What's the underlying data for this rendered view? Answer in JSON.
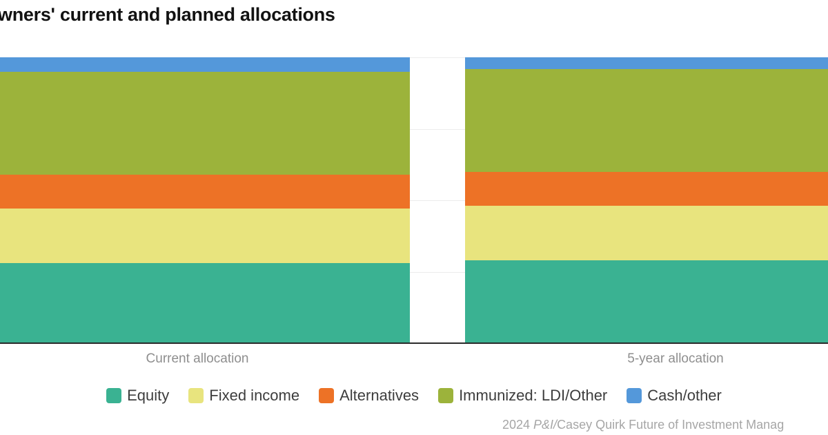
{
  "title": "wners' current and planned allocations",
  "chart_data": {
    "type": "bar",
    "stacked": true,
    "unit": "percent",
    "title": "wners' current and planned allocations",
    "categories": [
      "Current allocation",
      "5-year allocation"
    ],
    "series": [
      {
        "name": "Equity",
        "color": "#3ab292",
        "values": [
          28,
          29
        ]
      },
      {
        "name": "Fixed income",
        "color": "#e8e47e",
        "values": [
          19,
          19
        ]
      },
      {
        "name": "Alternatives",
        "color": "#ed7226",
        "values": [
          12,
          12
        ]
      },
      {
        "name": "Immunized: LDI/Other",
        "color": "#9cb33b",
        "values": [
          36,
          36
        ]
      },
      {
        "name": "Cash/other",
        "color": "#5498da",
        "values": [
          5,
          4
        ]
      }
    ],
    "ylim": [
      0,
      100
    ],
    "gridlines_percent": [
      25,
      50,
      75,
      100
    ],
    "grid_color": "#ececec",
    "axis_line_color": "#2a2a2a",
    "legend_position": "bottom"
  },
  "source": {
    "prefix": "2024 ",
    "italic": "P&I/",
    "rest": "Casey Quirk Future of Investment Manag"
  }
}
